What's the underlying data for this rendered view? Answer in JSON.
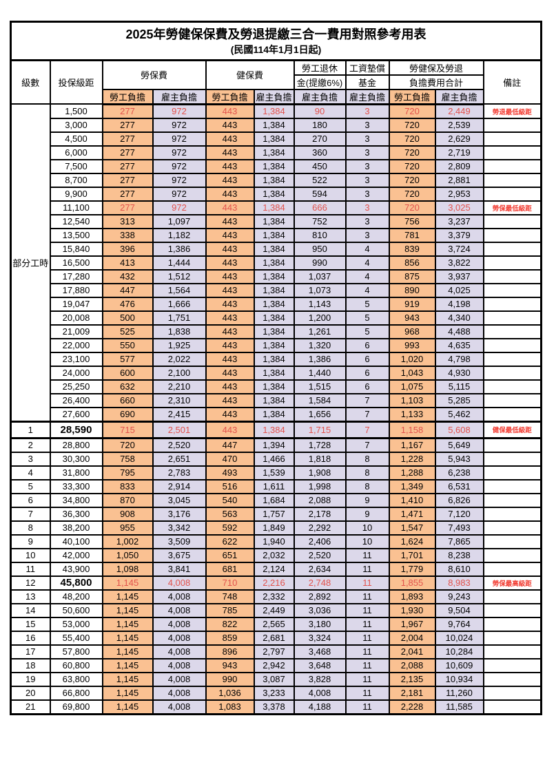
{
  "title": {
    "main": "2025年勞健保保費及勞退提繳三合一費用對照參考用表",
    "sub": "(民國114年1月1日起)"
  },
  "header": {
    "level": "級數",
    "bracket": "投保級距",
    "labor_group": "勞保費",
    "health_group": "健保費",
    "pension_line1": "勞工退休",
    "pension_line2": "金(提繳6%)",
    "wage_fund_line1": "工資墊償",
    "wage_fund_line2": "基金",
    "total_line1": "勞健保及勞退",
    "total_line2": "負擔費用合計",
    "employee_share": "勞工負擔",
    "employer_share": "雇主負擔",
    "note": "備註"
  },
  "part_time_label": "部分工時",
  "part_time_span": 23,
  "colors": {
    "employee_bg": "#FAC192",
    "employer_bg": "#DCD8EA",
    "highlight_text": "#E2524C",
    "note_text": "#F23D33",
    "border_color": "#000000"
  },
  "rows": [
    {
      "level": "",
      "bracket": "1,500",
      "v": [
        "277",
        "972",
        "443",
        "1,384",
        "90",
        "3",
        "720",
        "2,449"
      ],
      "note": "勞退最低級距",
      "red": true
    },
    {
      "level": "",
      "bracket": "3,000",
      "v": [
        "277",
        "972",
        "443",
        "1,384",
        "180",
        "3",
        "720",
        "2,539"
      ],
      "note": ""
    },
    {
      "level": "",
      "bracket": "4,500",
      "v": [
        "277",
        "972",
        "443",
        "1,384",
        "270",
        "3",
        "720",
        "2,629"
      ],
      "note": ""
    },
    {
      "level": "",
      "bracket": "6,000",
      "v": [
        "277",
        "972",
        "443",
        "1,384",
        "360",
        "3",
        "720",
        "2,719"
      ],
      "note": ""
    },
    {
      "level": "",
      "bracket": "7,500",
      "v": [
        "277",
        "972",
        "443",
        "1,384",
        "450",
        "3",
        "720",
        "2,809"
      ],
      "note": ""
    },
    {
      "level": "",
      "bracket": "8,700",
      "v": [
        "277",
        "972",
        "443",
        "1,384",
        "522",
        "3",
        "720",
        "2,881"
      ],
      "note": ""
    },
    {
      "level": "",
      "bracket": "9,900",
      "v": [
        "277",
        "972",
        "443",
        "1,384",
        "594",
        "3",
        "720",
        "2,953"
      ],
      "note": ""
    },
    {
      "level": "",
      "bracket": "11,100",
      "v": [
        "277",
        "972",
        "443",
        "1,384",
        "666",
        "3",
        "720",
        "3,025"
      ],
      "note": "勞保最低級距",
      "red": true
    },
    {
      "level": "",
      "bracket": "12,540",
      "v": [
        "313",
        "1,097",
        "443",
        "1,384",
        "752",
        "3",
        "756",
        "3,237"
      ],
      "note": ""
    },
    {
      "level": "",
      "bracket": "13,500",
      "v": [
        "338",
        "1,182",
        "443",
        "1,384",
        "810",
        "3",
        "781",
        "3,379"
      ],
      "note": ""
    },
    {
      "level": "",
      "bracket": "15,840",
      "v": [
        "396",
        "1,386",
        "443",
        "1,384",
        "950",
        "4",
        "839",
        "3,724"
      ],
      "note": ""
    },
    {
      "level": "",
      "bracket": "16,500",
      "v": [
        "413",
        "1,444",
        "443",
        "1,384",
        "990",
        "4",
        "856",
        "3,822"
      ],
      "note": ""
    },
    {
      "level": "",
      "bracket": "17,280",
      "v": [
        "432",
        "1,512",
        "443",
        "1,384",
        "1,037",
        "4",
        "875",
        "3,937"
      ],
      "note": ""
    },
    {
      "level": "",
      "bracket": "17,880",
      "v": [
        "447",
        "1,564",
        "443",
        "1,384",
        "1,073",
        "4",
        "890",
        "4,025"
      ],
      "note": ""
    },
    {
      "level": "",
      "bracket": "19,047",
      "v": [
        "476",
        "1,666",
        "443",
        "1,384",
        "1,143",
        "5",
        "919",
        "4,198"
      ],
      "note": ""
    },
    {
      "level": "",
      "bracket": "20,008",
      "v": [
        "500",
        "1,751",
        "443",
        "1,384",
        "1,200",
        "5",
        "943",
        "4,340"
      ],
      "note": ""
    },
    {
      "level": "",
      "bracket": "21,009",
      "v": [
        "525",
        "1,838",
        "443",
        "1,384",
        "1,261",
        "5",
        "968",
        "4,488"
      ],
      "note": ""
    },
    {
      "level": "",
      "bracket": "22,000",
      "v": [
        "550",
        "1,925",
        "443",
        "1,384",
        "1,320",
        "6",
        "993",
        "4,635"
      ],
      "note": ""
    },
    {
      "level": "",
      "bracket": "23,100",
      "v": [
        "577",
        "2,022",
        "443",
        "1,384",
        "1,386",
        "6",
        "1,020",
        "4,798"
      ],
      "note": ""
    },
    {
      "level": "",
      "bracket": "24,000",
      "v": [
        "600",
        "2,100",
        "443",
        "1,384",
        "1,440",
        "6",
        "1,043",
        "4,930"
      ],
      "note": ""
    },
    {
      "level": "",
      "bracket": "25,250",
      "v": [
        "632",
        "2,210",
        "443",
        "1,384",
        "1,515",
        "6",
        "1,075",
        "5,115"
      ],
      "note": ""
    },
    {
      "level": "",
      "bracket": "26,400",
      "v": [
        "660",
        "2,310",
        "443",
        "1,384",
        "1,584",
        "7",
        "1,103",
        "5,285"
      ],
      "note": ""
    },
    {
      "level": "",
      "bracket": "27,600",
      "v": [
        "690",
        "2,415",
        "443",
        "1,384",
        "1,656",
        "7",
        "1,133",
        "5,462"
      ],
      "note": ""
    },
    {
      "level": "1",
      "bracket": "28,590",
      "v": [
        "715",
        "2,501",
        "443",
        "1,384",
        "1,715",
        "7",
        "1,158",
        "5,608"
      ],
      "note": "健保最低級距",
      "red": true,
      "emph": true,
      "thick": true
    },
    {
      "level": "2",
      "bracket": "28,800",
      "v": [
        "720",
        "2,520",
        "447",
        "1,394",
        "1,728",
        "7",
        "1,167",
        "5,649"
      ],
      "note": ""
    },
    {
      "level": "3",
      "bracket": "30,300",
      "v": [
        "758",
        "2,651",
        "470",
        "1,466",
        "1,818",
        "8",
        "1,228",
        "5,943"
      ],
      "note": ""
    },
    {
      "level": "4",
      "bracket": "31,800",
      "v": [
        "795",
        "2,783",
        "493",
        "1,539",
        "1,908",
        "8",
        "1,288",
        "6,238"
      ],
      "note": ""
    },
    {
      "level": "5",
      "bracket": "33,300",
      "v": [
        "833",
        "2,914",
        "516",
        "1,611",
        "1,998",
        "8",
        "1,349",
        "6,531"
      ],
      "note": ""
    },
    {
      "level": "6",
      "bracket": "34,800",
      "v": [
        "870",
        "3,045",
        "540",
        "1,684",
        "2,088",
        "9",
        "1,410",
        "6,826"
      ],
      "note": ""
    },
    {
      "level": "7",
      "bracket": "36,300",
      "v": [
        "908",
        "3,176",
        "563",
        "1,757",
        "2,178",
        "9",
        "1,471",
        "7,120"
      ],
      "note": ""
    },
    {
      "level": "8",
      "bracket": "38,200",
      "v": [
        "955",
        "3,342",
        "592",
        "1,849",
        "2,292",
        "10",
        "1,547",
        "7,493"
      ],
      "note": ""
    },
    {
      "level": "9",
      "bracket": "40,100",
      "v": [
        "1,002",
        "3,509",
        "622",
        "1,940",
        "2,406",
        "10",
        "1,624",
        "7,865"
      ],
      "note": ""
    },
    {
      "level": "10",
      "bracket": "42,000",
      "v": [
        "1,050",
        "3,675",
        "651",
        "2,032",
        "2,520",
        "11",
        "1,701",
        "8,238"
      ],
      "note": ""
    },
    {
      "level": "11",
      "bracket": "43,900",
      "v": [
        "1,098",
        "3,841",
        "681",
        "2,124",
        "2,634",
        "11",
        "1,779",
        "8,610"
      ],
      "note": ""
    },
    {
      "level": "12",
      "bracket": "45,800",
      "v": [
        "1,145",
        "4,008",
        "710",
        "2,216",
        "2,748",
        "11",
        "1,855",
        "8,983"
      ],
      "note": "勞保最高級距",
      "red": true,
      "emph": true
    },
    {
      "level": "13",
      "bracket": "48,200",
      "v": [
        "1,145",
        "4,008",
        "748",
        "2,332",
        "2,892",
        "11",
        "1,893",
        "9,243"
      ],
      "note": ""
    },
    {
      "level": "14",
      "bracket": "50,600",
      "v": [
        "1,145",
        "4,008",
        "785",
        "2,449",
        "3,036",
        "11",
        "1,930",
        "9,504"
      ],
      "note": ""
    },
    {
      "level": "15",
      "bracket": "53,000",
      "v": [
        "1,145",
        "4,008",
        "822",
        "2,565",
        "3,180",
        "11",
        "1,967",
        "9,764"
      ],
      "note": ""
    },
    {
      "level": "16",
      "bracket": "55,400",
      "v": [
        "1,145",
        "4,008",
        "859",
        "2,681",
        "3,324",
        "11",
        "2,004",
        "10,024"
      ],
      "note": ""
    },
    {
      "level": "17",
      "bracket": "57,800",
      "v": [
        "1,145",
        "4,008",
        "896",
        "2,797",
        "3,468",
        "11",
        "2,041",
        "10,284"
      ],
      "note": ""
    },
    {
      "level": "18",
      "bracket": "60,800",
      "v": [
        "1,145",
        "4,008",
        "943",
        "2,942",
        "3,648",
        "11",
        "2,088",
        "10,609"
      ],
      "note": ""
    },
    {
      "level": "19",
      "bracket": "63,800",
      "v": [
        "1,145",
        "4,008",
        "990",
        "3,087",
        "3,828",
        "11",
        "2,135",
        "10,934"
      ],
      "note": ""
    },
    {
      "level": "20",
      "bracket": "66,800",
      "v": [
        "1,145",
        "4,008",
        "1,036",
        "3,233",
        "4,008",
        "11",
        "2,181",
        "11,260"
      ],
      "note": ""
    },
    {
      "level": "21",
      "bracket": "69,800",
      "v": [
        "1,145",
        "4,008",
        "1,083",
        "3,378",
        "4,188",
        "11",
        "2,228",
        "11,585"
      ],
      "note": ""
    }
  ]
}
